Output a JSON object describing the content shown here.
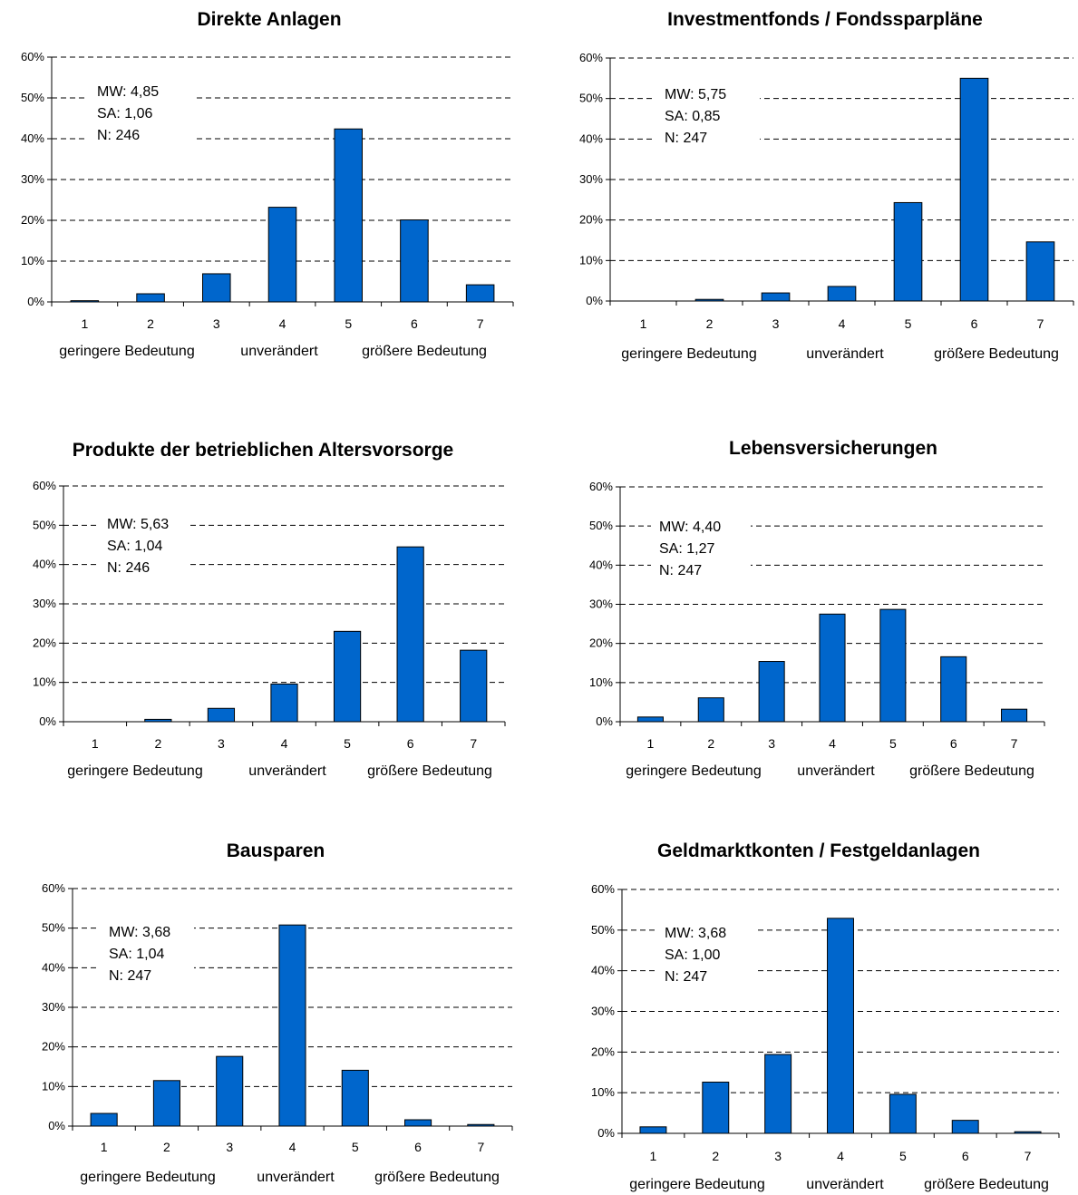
{
  "chart_data": [
    {
      "type": "bar",
      "title": "Direkte Anlagen",
      "categories": [
        "1",
        "2",
        "3",
        "4",
        "5",
        "6",
        "7"
      ],
      "values": [
        0.3,
        2.0,
        6.9,
        23.2,
        42.4,
        20.1,
        4.2
      ],
      "ylim": [
        0,
        60
      ],
      "yticks": [
        "0%",
        "10%",
        "20%",
        "30%",
        "40%",
        "50%",
        "60%"
      ],
      "grid": true,
      "scale_labels": [
        "geringere Bedeutung",
        "unverändert",
        "größere Bedeutung"
      ],
      "stats": [
        "MW: 4,85",
        "SA: 1,06",
        "N: 246"
      ]
    },
    {
      "type": "bar",
      "title": "Investmentfonds / Fondssparpläne",
      "categories": [
        "1",
        "2",
        "3",
        "4",
        "5",
        "6",
        "7"
      ],
      "values": [
        0,
        0.4,
        2.0,
        3.6,
        24.3,
        55.0,
        14.6
      ],
      "ylim": [
        0,
        60
      ],
      "yticks": [
        "0%",
        "10%",
        "20%",
        "30%",
        "40%",
        "50%",
        "60%"
      ],
      "grid": true,
      "scale_labels": [
        "geringere Bedeutung",
        "unverändert",
        "größere Bedeutung"
      ],
      "stats": [
        "MW: 5,75",
        "SA: 0,85",
        "N: 247"
      ]
    },
    {
      "type": "bar",
      "title": "Produkte der betrieblichen Altersvorsorge",
      "categories": [
        "1",
        "2",
        "3",
        "4",
        "5",
        "6",
        "7"
      ],
      "values": [
        0,
        0.6,
        3.4,
        9.6,
        23.0,
        44.5,
        18.2
      ],
      "ylim": [
        0,
        60
      ],
      "yticks": [
        "0%",
        "10%",
        "20%",
        "30%",
        "40%",
        "50%",
        "60%"
      ],
      "grid": true,
      "scale_labels": [
        "geringere Bedeutung",
        "unverändert",
        "größere Bedeutung"
      ],
      "stats": [
        "MW: 5,63",
        "SA: 1,04",
        "N: 246"
      ]
    },
    {
      "type": "bar",
      "title": "Lebensversicherungen",
      "categories": [
        "1",
        "2",
        "3",
        "4",
        "5",
        "6",
        "7"
      ],
      "values": [
        1.2,
        6.1,
        15.4,
        27.5,
        28.7,
        16.6,
        3.2
      ],
      "ylim": [
        0,
        60
      ],
      "yticks": [
        "0%",
        "10%",
        "20%",
        "30%",
        "40%",
        "50%",
        "60%"
      ],
      "grid": true,
      "scale_labels": [
        "geringere Bedeutung",
        "unverändert",
        "größere Bedeutung"
      ],
      "stats": [
        "MW: 4,40",
        "SA: 1,27",
        "N: 247"
      ]
    },
    {
      "type": "bar",
      "title": "Bausparen",
      "categories": [
        "1",
        "2",
        "3",
        "4",
        "5",
        "6",
        "7"
      ],
      "values": [
        3.2,
        11.5,
        17.6,
        50.8,
        14.1,
        1.6,
        0.4
      ],
      "ylim": [
        0,
        60
      ],
      "yticks": [
        "0%",
        "10%",
        "20%",
        "30%",
        "40%",
        "50%",
        "60%"
      ],
      "grid": true,
      "scale_labels": [
        "geringere Bedeutung",
        "unverändert",
        "größere Bedeutung"
      ],
      "stats": [
        "MW: 3,68",
        "SA: 1,04",
        "N: 247"
      ]
    },
    {
      "type": "bar",
      "title": "Geldmarktkonten / Festgeldanlagen",
      "categories": [
        "1",
        "2",
        "3",
        "4",
        "5",
        "6",
        "7"
      ],
      "values": [
        1.6,
        12.6,
        19.4,
        52.9,
        9.6,
        3.2,
        0.4
      ],
      "ylim": [
        0,
        60
      ],
      "yticks": [
        "0%",
        "10%",
        "20%",
        "30%",
        "40%",
        "50%",
        "60%"
      ],
      "grid": true,
      "scale_labels": [
        "geringere Bedeutung",
        "unverändert",
        "größere Bedeutung"
      ],
      "stats": [
        "MW: 3,68",
        "SA: 1,00",
        "N: 247"
      ]
    }
  ],
  "colors": {
    "bar_fill": "#0066cc",
    "bar_stroke": "#000000",
    "grid": "#000000",
    "text": "#000000"
  }
}
